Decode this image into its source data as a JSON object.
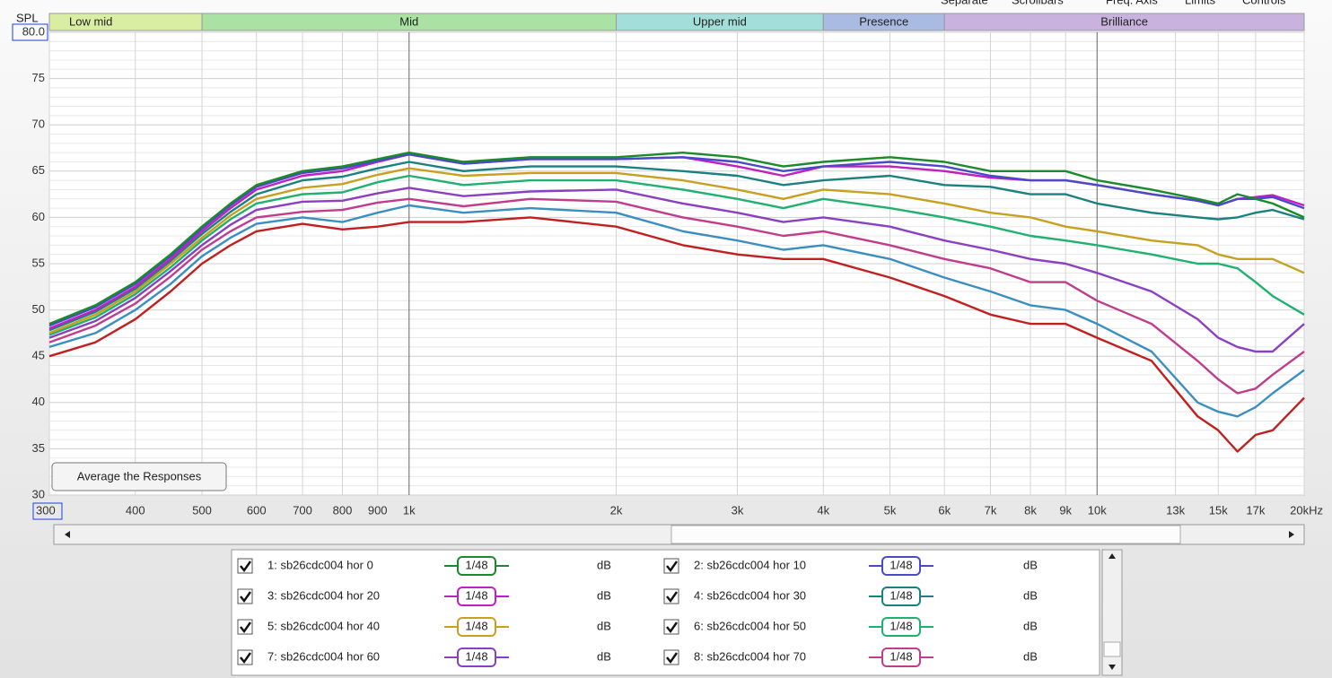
{
  "chart_data": {
    "type": "line",
    "y_label": "SPL",
    "toolbar": [
      "Separate",
      "Scrollbars",
      "Freq. Axis",
      "Limits",
      "Controls"
    ],
    "button": "Average the Responses",
    "bands": [
      {
        "label": "Low mid",
        "range": [
          300,
          500
        ],
        "color": "#d9eda3"
      },
      {
        "label": "Mid",
        "range": [
          500,
          2000
        ],
        "color": "#a9e2a3"
      },
      {
        "label": "Upper mid",
        "range": [
          2000,
          4000
        ],
        "color": "#a3dedb"
      },
      {
        "label": "Presence",
        "range": [
          4000,
          6000
        ],
        "color": "#a9bbe3"
      },
      {
        "label": "Brilliance",
        "range": [
          6000,
          20000
        ],
        "color": "#c9b3de"
      }
    ],
    "xlim": [
      300,
      20000
    ],
    "ylim": [
      30,
      80
    ],
    "xlog": true,
    "grid": true,
    "xticks": [
      300,
      400,
      500,
      600,
      700,
      800,
      900,
      {
        "value": 1000,
        "label": "1k"
      },
      {
        "value": 2000,
        "label": "2k"
      },
      {
        "value": 3000,
        "label": "3k"
      },
      {
        "value": 4000,
        "label": "4k"
      },
      {
        "value": 5000,
        "label": "5k"
      },
      {
        "value": 6000,
        "label": "6k"
      },
      {
        "value": 7000,
        "label": "7k"
      },
      {
        "value": 8000,
        "label": "8k"
      },
      {
        "value": 9000,
        "label": "9k"
      },
      {
        "value": 10000,
        "label": "10k"
      },
      {
        "value": 13000,
        "label": "13k"
      },
      {
        "value": 15000,
        "label": "15k"
      },
      {
        "value": 17000,
        "label": "17k"
      },
      {
        "value": 20000,
        "label": "20kHz"
      }
    ],
    "yticks": [
      30,
      35,
      40,
      45,
      50,
      55,
      60,
      65,
      70,
      75,
      {
        "value": 80,
        "label": "80.0"
      }
    ],
    "x": [
      300,
      350,
      400,
      450,
      500,
      550,
      600,
      700,
      800,
      900,
      1000,
      1200,
      1500,
      2000,
      2500,
      3000,
      3500,
      4000,
      5000,
      6000,
      7000,
      8000,
      9000,
      10000,
      12000,
      14000,
      15000,
      16000,
      17000,
      18000,
      20000
    ],
    "series": [
      {
        "name": "1: sb26cdc004 hor 0",
        "color": "#1a8a2a",
        "smoothing": "1/48",
        "unit": "dB",
        "values": [
          48.5,
          50.5,
          53,
          56,
          59,
          61.5,
          63.5,
          65,
          65.5,
          66.3,
          67,
          66,
          66.5,
          66.5,
          67,
          66.5,
          65.5,
          66,
          66.5,
          66,
          65,
          65,
          65,
          64,
          63,
          62,
          61.5,
          62.5,
          62,
          61.5,
          60
        ]
      },
      {
        "name": "2: sb26cdc004 hor 10",
        "color": "#4a4ac8",
        "smoothing": "1/48",
        "unit": "dB",
        "values": [
          48.3,
          50.3,
          52.8,
          55.8,
          58.8,
          61.3,
          63.3,
          64.8,
          65.3,
          66.1,
          66.8,
          65.8,
          66.3,
          66.3,
          66.5,
          66,
          65,
          65.5,
          66,
          65.5,
          64.5,
          64,
          64,
          63.5,
          62.5,
          61.8,
          61.3,
          62,
          62,
          62.2,
          61
        ]
      },
      {
        "name": "3: sb26cdc004 hor 20",
        "color": "#c020c0",
        "smoothing": "1/48",
        "unit": "dB",
        "values": [
          48,
          50,
          52.5,
          55.5,
          58.5,
          61,
          63,
          64.5,
          65,
          66,
          66.8,
          65.8,
          66.3,
          66.3,
          66.5,
          65.5,
          64.5,
          65.5,
          65.5,
          65,
          64.3,
          64,
          64,
          63.5,
          62.5,
          61.8,
          61.3,
          62,
          62.2,
          62.4,
          61.3
        ]
      },
      {
        "name": "4: sb26cdc004 hor 30",
        "color": "#1a8080",
        "smoothing": "1/48",
        "unit": "dB",
        "values": [
          47.8,
          49.8,
          52.3,
          55.3,
          58.2,
          60.6,
          62.5,
          64,
          64.4,
          65.3,
          66,
          65,
          65.5,
          65.5,
          65,
          64.5,
          63.5,
          64,
          64.5,
          63.5,
          63.3,
          62.5,
          62.5,
          61.5,
          60.5,
          60,
          59.8,
          60,
          60.5,
          60.8,
          59.8
        ]
      },
      {
        "name": "5: sb26cdc004 hor 40",
        "color": "#c8a020",
        "smoothing": "1/48",
        "unit": "dB",
        "values": [
          47.5,
          49.5,
          52,
          55,
          57.8,
          60.2,
          62,
          63.2,
          63.6,
          64.6,
          65.3,
          64.5,
          64.8,
          64.8,
          64,
          63,
          62,
          63,
          62.5,
          61.5,
          60.5,
          60,
          59,
          58.5,
          57.5,
          57,
          56,
          55.5,
          55.5,
          55.5,
          54
        ]
      },
      {
        "name": "6: sb26cdc004 hor 50",
        "color": "#20b070",
        "smoothing": "1/48",
        "unit": "dB",
        "values": [
          47.3,
          49.2,
          51.7,
          54.6,
          57.5,
          59.8,
          61.5,
          62.5,
          62.7,
          63.8,
          64.5,
          63.5,
          64,
          64,
          63,
          62,
          61,
          62,
          61,
          60,
          59,
          58,
          57.5,
          57,
          56,
          55,
          55,
          54.5,
          53,
          51.5,
          49.5
        ]
      },
      {
        "name": "7: sb26cdc004 hor 60",
        "color": "#8a40c0",
        "smoothing": "1/48",
        "unit": "dB",
        "values": [
          47,
          48.8,
          51.3,
          54.2,
          57,
          59.2,
          60.8,
          61.7,
          61.8,
          62.6,
          63.2,
          62.3,
          62.8,
          63,
          61.5,
          60.5,
          59.5,
          60,
          59,
          57.5,
          56.5,
          55.5,
          55,
          54,
          52,
          49,
          47,
          46,
          45.5,
          45.5,
          48.5
        ]
      },
      {
        "name": "8: sb26cdc004 hor 70",
        "color": "#c03c8c",
        "smoothing": "1/48",
        "unit": "dB",
        "values": [
          46.5,
          48.3,
          50.7,
          53.6,
          56.5,
          58.5,
          60,
          60.6,
          60.8,
          61.6,
          62,
          61.2,
          62,
          61.7,
          60,
          59,
          58,
          58.5,
          57,
          55.5,
          54.5,
          53,
          53,
          51,
          48.5,
          44.5,
          42.5,
          41,
          41.5,
          43,
          45.5
        ]
      },
      {
        "color": "#3a8fc0",
        "values": [
          46,
          47.5,
          50,
          52.8,
          55.8,
          57.8,
          59.3,
          60,
          59.5,
          60.5,
          61.3,
          60.5,
          61,
          60.5,
          58.5,
          57.5,
          56.5,
          57,
          55.5,
          53.5,
          52,
          50.5,
          50,
          48.5,
          45.5,
          40,
          39,
          38.5,
          39.5,
          41,
          43.5
        ]
      },
      {
        "color": "#c02020",
        "values": [
          45,
          46.5,
          49,
          52,
          55,
          57,
          58.5,
          59.3,
          58.7,
          59,
          59.5,
          59.5,
          60,
          59,
          57,
          56,
          55.5,
          55.5,
          53.5,
          51.5,
          49.5,
          48.5,
          48.5,
          47,
          44.5,
          38.5,
          37,
          34.7,
          36.5,
          37,
          40.5
        ]
      }
    ]
  }
}
